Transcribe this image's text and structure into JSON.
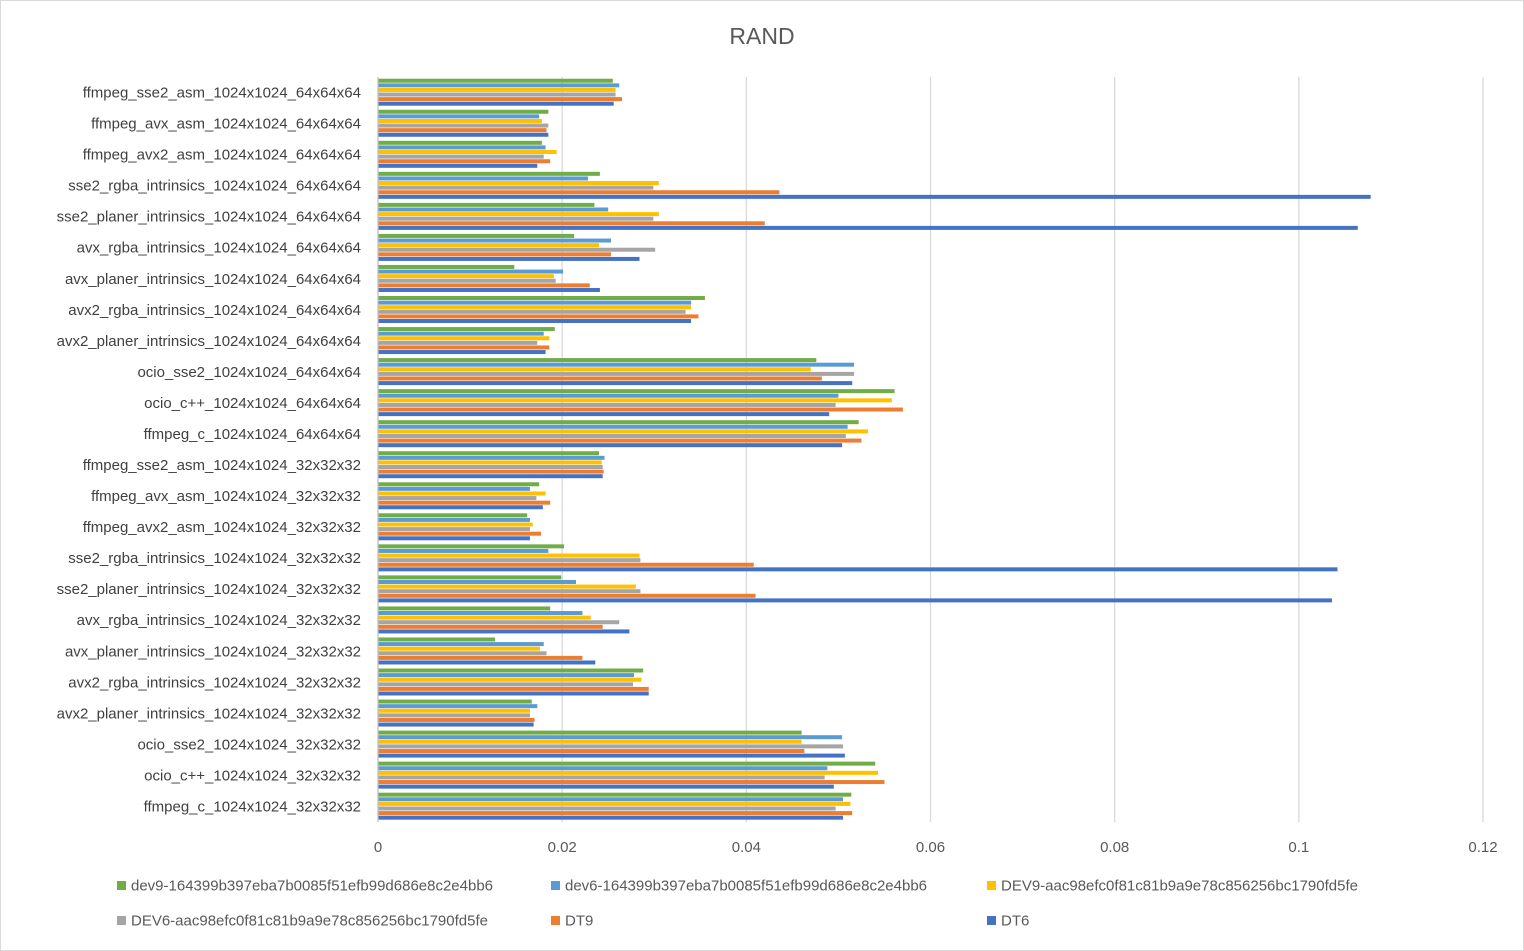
{
  "chart_data": {
    "type": "bar",
    "orientation": "horizontal",
    "title": "RAND",
    "xlabel": "",
    "ylabel": "",
    "xlim": [
      0,
      0.12
    ],
    "xticks": [
      0,
      0.02,
      0.04,
      0.06,
      0.08,
      0.1,
      0.12
    ],
    "xtick_labels": [
      "0",
      "0.02",
      "0.04",
      "0.06",
      "0.08",
      "0.1",
      "0.12"
    ],
    "grid": "vertical",
    "legend_position": "bottom",
    "categories": [
      "ffmpeg_sse2_asm_1024x1024_64x64x64",
      "ffmpeg_avx_asm_1024x1024_64x64x64",
      "ffmpeg_avx2_asm_1024x1024_64x64x64",
      "sse2_rgba_intrinsics_1024x1024_64x64x64",
      "sse2_planer_intrinsics_1024x1024_64x64x64",
      "avx_rgba_intrinsics_1024x1024_64x64x64",
      "avx_planer_intrinsics_1024x1024_64x64x64",
      "avx2_rgba_intrinsics_1024x1024_64x64x64",
      "avx2_planer_intrinsics_1024x1024_64x64x64",
      "ocio_sse2_1024x1024_64x64x64",
      "ocio_c++_1024x1024_64x64x64",
      "ffmpeg_c_1024x1024_64x64x64",
      "ffmpeg_sse2_asm_1024x1024_32x32x32",
      "ffmpeg_avx_asm_1024x1024_32x32x32",
      "ffmpeg_avx2_asm_1024x1024_32x32x32",
      "sse2_rgba_intrinsics_1024x1024_32x32x32",
      "sse2_planer_intrinsics_1024x1024_32x32x32",
      "avx_rgba_intrinsics_1024x1024_32x32x32",
      "avx_planer_intrinsics_1024x1024_32x32x32",
      "avx2_rgba_intrinsics_1024x1024_32x32x32",
      "avx2_planer_intrinsics_1024x1024_32x32x32",
      "ocio_sse2_1024x1024_32x32x32",
      "ocio_c++_1024x1024_32x32x32",
      "ffmpeg_c_1024x1024_32x32x32"
    ],
    "series": [
      {
        "name": "dev9-164399b397eba7b0085f51efb99d686e8c2e4bb6",
        "color": "#70ad47",
        "values": [
          0.0255,
          0.0185,
          0.0178,
          0.0241,
          0.0235,
          0.0213,
          0.0148,
          0.0355,
          0.0192,
          0.0476,
          0.0561,
          0.0522,
          0.024,
          0.0175,
          0.0162,
          0.0202,
          0.0199,
          0.0187,
          0.0127,
          0.0288,
          0.0167,
          0.046,
          0.054,
          0.0514
        ]
      },
      {
        "name": "dev6-164399b397eba7b0085f51efb99d686e8c2e4bb6",
        "color": "#5b9bd5",
        "values": [
          0.0262,
          0.0175,
          0.0182,
          0.0228,
          0.025,
          0.0253,
          0.0201,
          0.034,
          0.018,
          0.0517,
          0.05,
          0.051,
          0.0246,
          0.0165,
          0.0165,
          0.0185,
          0.0215,
          0.0222,
          0.018,
          0.0278,
          0.0173,
          0.0504,
          0.0488,
          0.0505
        ]
      },
      {
        "name": "DEV9-aac98efc0f81c81b9a9e78c856256bc1790fd5fe",
        "color": "#ffc000",
        "values": [
          0.0258,
          0.0178,
          0.0194,
          0.0305,
          0.0305,
          0.024,
          0.0191,
          0.034,
          0.0186,
          0.047,
          0.0558,
          0.0532,
          0.0243,
          0.0182,
          0.0168,
          0.0284,
          0.028,
          0.0231,
          0.0176,
          0.0286,
          0.0165,
          0.046,
          0.0543,
          0.0513
        ]
      },
      {
        "name": "DEV6-aac98efc0f81c81b9a9e78c856256bc1790fd5fe",
        "color": "#a5a5a5",
        "values": [
          0.0258,
          0.0185,
          0.018,
          0.0299,
          0.0299,
          0.0301,
          0.0193,
          0.0334,
          0.0173,
          0.0517,
          0.0497,
          0.0508,
          0.0244,
          0.0172,
          0.0165,
          0.0285,
          0.0285,
          0.0262,
          0.0183,
          0.0277,
          0.0165,
          0.0505,
          0.0485,
          0.0497
        ]
      },
      {
        "name": "DT9",
        "color": "#ed7d31",
        "values": [
          0.0265,
          0.0183,
          0.0187,
          0.0436,
          0.042,
          0.0253,
          0.023,
          0.0348,
          0.0186,
          0.0482,
          0.057,
          0.0525,
          0.0245,
          0.0187,
          0.0177,
          0.0408,
          0.041,
          0.0244,
          0.0222,
          0.0294,
          0.017,
          0.0463,
          0.055,
          0.0515
        ]
      },
      {
        "name": "DT6",
        "color": "#4472c4",
        "values": [
          0.0256,
          0.0185,
          0.0173,
          0.1078,
          0.1064,
          0.0284,
          0.0241,
          0.034,
          0.0182,
          0.0515,
          0.049,
          0.0504,
          0.0244,
          0.0179,
          0.0165,
          0.1042,
          0.1036,
          0.0273,
          0.0236,
          0.0294,
          0.0169,
          0.0507,
          0.0495,
          0.0505
        ]
      }
    ]
  }
}
